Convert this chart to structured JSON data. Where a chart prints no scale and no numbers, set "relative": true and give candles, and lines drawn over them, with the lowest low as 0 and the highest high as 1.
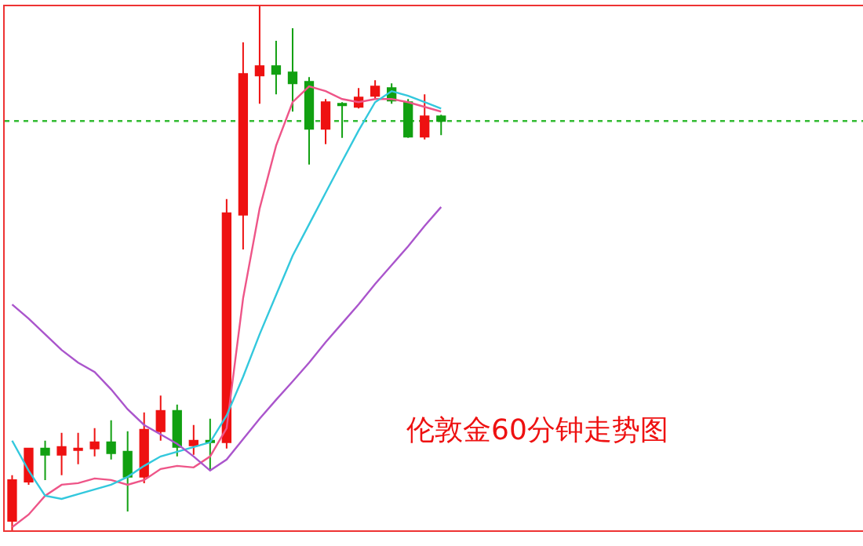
{
  "chart_data": {
    "type": "candlestick",
    "relative": true,
    "categories": [
      null,
      null,
      null,
      null,
      null,
      null,
      null,
      null,
      null,
      null,
      null,
      null,
      null,
      null,
      null,
      null,
      null,
      null,
      null,
      null,
      null,
      null,
      null,
      null,
      null,
      null,
      null
    ],
    "ohlc": [
      [
        0.018,
        0.105,
        0,
        0.096
      ],
      [
        0.093,
        0.156,
        0.087,
        0.156
      ],
      [
        0.156,
        0.171,
        0.096,
        0.144
      ],
      [
        0.144,
        0.186,
        0.105,
        0.159
      ],
      [
        0.153,
        0.186,
        0.126,
        0.156
      ],
      [
        0.156,
        0.195,
        0.141,
        0.168
      ],
      [
        0.168,
        0.21,
        0.135,
        0.147
      ],
      [
        0.15,
        0.189,
        0.036,
        0.102
      ],
      [
        0.102,
        0.225,
        0.09,
        0.192
      ],
      [
        0.189,
        0.257,
        0.171,
        0.228
      ],
      [
        0.228,
        0.24,
        0.141,
        0.159
      ],
      [
        0.162,
        0.201,
        0.144,
        0.171
      ],
      [
        0.171,
        0.213,
        0.114,
        0.168
      ],
      [
        0.168,
        0.632,
        0.156,
        0.605
      ],
      [
        0.602,
        0.931,
        0.536,
        0.871
      ],
      [
        0.868,
        1,
        0.814,
        0.886
      ],
      [
        0.886,
        0.934,
        0.832,
        0.871
      ],
      [
        0.874,
        0.958,
        0.799,
        0.853
      ],
      [
        0.856,
        0.865,
        0.698,
        0.766
      ],
      [
        0.766,
        0.823,
        0.737,
        0.817
      ],
      [
        0.814,
        0.817,
        0.749,
        0.811
      ],
      [
        0.808,
        0.844,
        0.805,
        0.826
      ],
      [
        0.829,
        0.859,
        0.823,
        0.847
      ],
      [
        0.844,
        0.853,
        0.814,
        0.82
      ],
      [
        0.817,
        0.823,
        0.749,
        0.751
      ],
      [
        0.751,
        0.832,
        0.746,
        0.79
      ],
      [
        0.79,
        0.793,
        0.754,
        0.781
      ]
    ],
    "series": [
      {
        "type": "line",
        "color": "#ee5588",
        "values": [
          0.006,
          0.03,
          0.066,
          0.087,
          0.09,
          0.099,
          0.096,
          0.087,
          0.096,
          0.117,
          0.123,
          0.12,
          0.141,
          0.195,
          0.443,
          0.614,
          0.734,
          0.817,
          0.847,
          0.838,
          0.823,
          0.817,
          0.823,
          0.823,
          0.817,
          0.808,
          0.799
        ]
      },
      {
        "type": "line",
        "color": "#33c8dd",
        "values": [
          0.171,
          0.114,
          0.066,
          0.06,
          0.069,
          0.078,
          0.087,
          0.102,
          0.123,
          0.141,
          0.15,
          0.159,
          0.168,
          0.219,
          0.293,
          0.374,
          0.449,
          0.524,
          0.584,
          0.644,
          0.704,
          0.763,
          0.817,
          0.838,
          0.829,
          0.817,
          0.805
        ]
      },
      {
        "type": "line",
        "color": "#aa55cc",
        "values": [
          0.431,
          0.404,
          0.374,
          0.344,
          0.32,
          0.302,
          0.269,
          0.231,
          0.201,
          0.183,
          0.165,
          0.141,
          0.114,
          0.135,
          0.174,
          0.213,
          0.249,
          0.284,
          0.32,
          0.359,
          0.395,
          0.431,
          0.47,
          0.506,
          0.542,
          0.581,
          0.617
        ]
      }
    ],
    "ref_lines": [
      {
        "axis": "y",
        "value": 0.781,
        "color": "#33bb33",
        "line_style": "dotted"
      }
    ],
    "annotations": [
      "伦敦金60分钟走势图"
    ]
  }
}
